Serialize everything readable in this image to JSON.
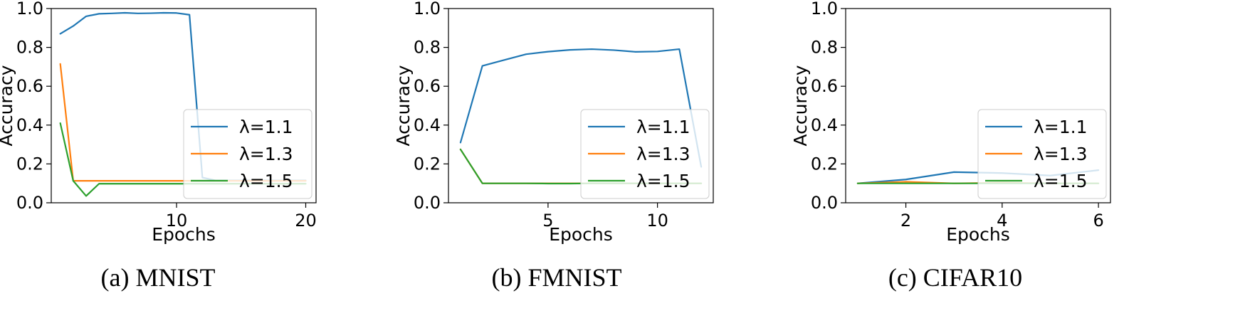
{
  "chart_data": [
    {
      "type": "line",
      "caption": "(a) MNIST",
      "xlabel": "Epochs",
      "ylabel": "Accuracy",
      "xlim": [
        0.3,
        20.8
      ],
      "ylim": [
        0.0,
        1.0
      ],
      "xticks": [
        10,
        20
      ],
      "yticks": [
        0.0,
        0.2,
        0.4,
        0.6,
        0.8,
        1.0
      ],
      "grid": false,
      "legend_position": "lower-right",
      "series": [
        {
          "name": "λ=1.1",
          "color": "#1f77b4",
          "x": [
            1,
            2,
            3,
            4,
            5,
            6,
            7,
            8,
            9,
            10,
            11,
            12,
            13,
            14,
            15,
            16,
            17,
            18,
            19,
            20
          ],
          "y": [
            0.87,
            0.91,
            0.96,
            0.973,
            0.975,
            0.978,
            0.975,
            0.976,
            0.978,
            0.977,
            0.968,
            0.13,
            0.115,
            0.115,
            0.115,
            0.115,
            0.115,
            0.115,
            0.115,
            0.115
          ]
        },
        {
          "name": "λ=1.3",
          "color": "#ff7f0e",
          "x": [
            1,
            2,
            3,
            4,
            5,
            6,
            7,
            8,
            9,
            10,
            11,
            12,
            13,
            14,
            15,
            16,
            17,
            18,
            19,
            20
          ],
          "y": [
            0.715,
            0.113,
            0.113,
            0.113,
            0.113,
            0.113,
            0.113,
            0.113,
            0.113,
            0.113,
            0.113,
            0.113,
            0.113,
            0.113,
            0.113,
            0.113,
            0.113,
            0.113,
            0.113,
            0.113
          ]
        },
        {
          "name": "λ=1.5",
          "color": "#2ca02c",
          "x": [
            1,
            2,
            3,
            4,
            5,
            6,
            7,
            8,
            9,
            10,
            11,
            12,
            13,
            14,
            15,
            16,
            17,
            18,
            19,
            20
          ],
          "y": [
            0.41,
            0.113,
            0.035,
            0.098,
            0.098,
            0.098,
            0.098,
            0.098,
            0.098,
            0.098,
            0.098,
            0.098,
            0.098,
            0.098,
            0.098,
            0.098,
            0.098,
            0.098,
            0.098,
            0.098
          ]
        }
      ]
    },
    {
      "type": "line",
      "caption": "(b) FMNIST",
      "xlabel": "Epochs",
      "ylabel": "Accuracy",
      "xlim": [
        0.45,
        12.55
      ],
      "ylim": [
        0.0,
        1.0
      ],
      "xticks": [
        5,
        10
      ],
      "yticks": [
        0.0,
        0.2,
        0.4,
        0.6,
        0.8,
        1.0
      ],
      "grid": false,
      "legend_position": "lower-right",
      "series": [
        {
          "name": "λ=1.1",
          "color": "#1f77b4",
          "x": [
            1,
            2,
            3,
            4,
            5,
            6,
            7,
            8,
            9,
            10,
            11,
            12
          ],
          "y": [
            0.31,
            0.705,
            0.735,
            0.765,
            0.778,
            0.787,
            0.791,
            0.786,
            0.777,
            0.779,
            0.791,
            0.185
          ]
        },
        {
          "name": "λ=1.3",
          "color": "#ff7f0e",
          "x": [
            1,
            2,
            3,
            4,
            5,
            6,
            7,
            8,
            9,
            10,
            11,
            12
          ],
          "y": [
            0.275,
            0.1,
            0.1,
            0.1,
            0.1,
            0.1,
            0.1,
            0.1,
            0.1,
            0.1,
            0.1,
            0.1
          ]
        },
        {
          "name": "λ=1.5",
          "color": "#2ca02c",
          "x": [
            1,
            2,
            3,
            4,
            5,
            6,
            7,
            8,
            9,
            10,
            11,
            12
          ],
          "y": [
            0.275,
            0.1,
            0.1,
            0.1,
            0.099,
            0.099,
            0.1,
            0.1,
            0.1,
            0.1,
            0.1,
            0.1
          ]
        }
      ]
    },
    {
      "type": "line",
      "caption": "(c) CIFAR10",
      "xlabel": "Epochs",
      "ylabel": "Accuracy",
      "xlim": [
        0.75,
        6.25
      ],
      "ylim": [
        0.0,
        1.0
      ],
      "xticks": [
        2,
        4,
        6
      ],
      "yticks": [
        0.0,
        0.2,
        0.4,
        0.6,
        0.8,
        1.0
      ],
      "grid": false,
      "legend_position": "lower-right",
      "series": [
        {
          "name": "λ=1.1",
          "color": "#1f77b4",
          "x": [
            1,
            2,
            3,
            4,
            5,
            6
          ],
          "y": [
            0.1,
            0.12,
            0.158,
            0.153,
            0.14,
            0.168
          ]
        },
        {
          "name": "λ=1.3",
          "color": "#ff7f0e",
          "x": [
            1,
            2,
            3,
            4,
            5,
            6
          ],
          "y": [
            0.1,
            0.108,
            0.1,
            0.103,
            0.1,
            0.1
          ]
        },
        {
          "name": "λ=1.5",
          "color": "#2ca02c",
          "x": [
            1,
            2,
            3,
            4,
            5,
            6
          ],
          "y": [
            0.1,
            0.1,
            0.1,
            0.1,
            0.1,
            0.1
          ]
        }
      ]
    }
  ]
}
